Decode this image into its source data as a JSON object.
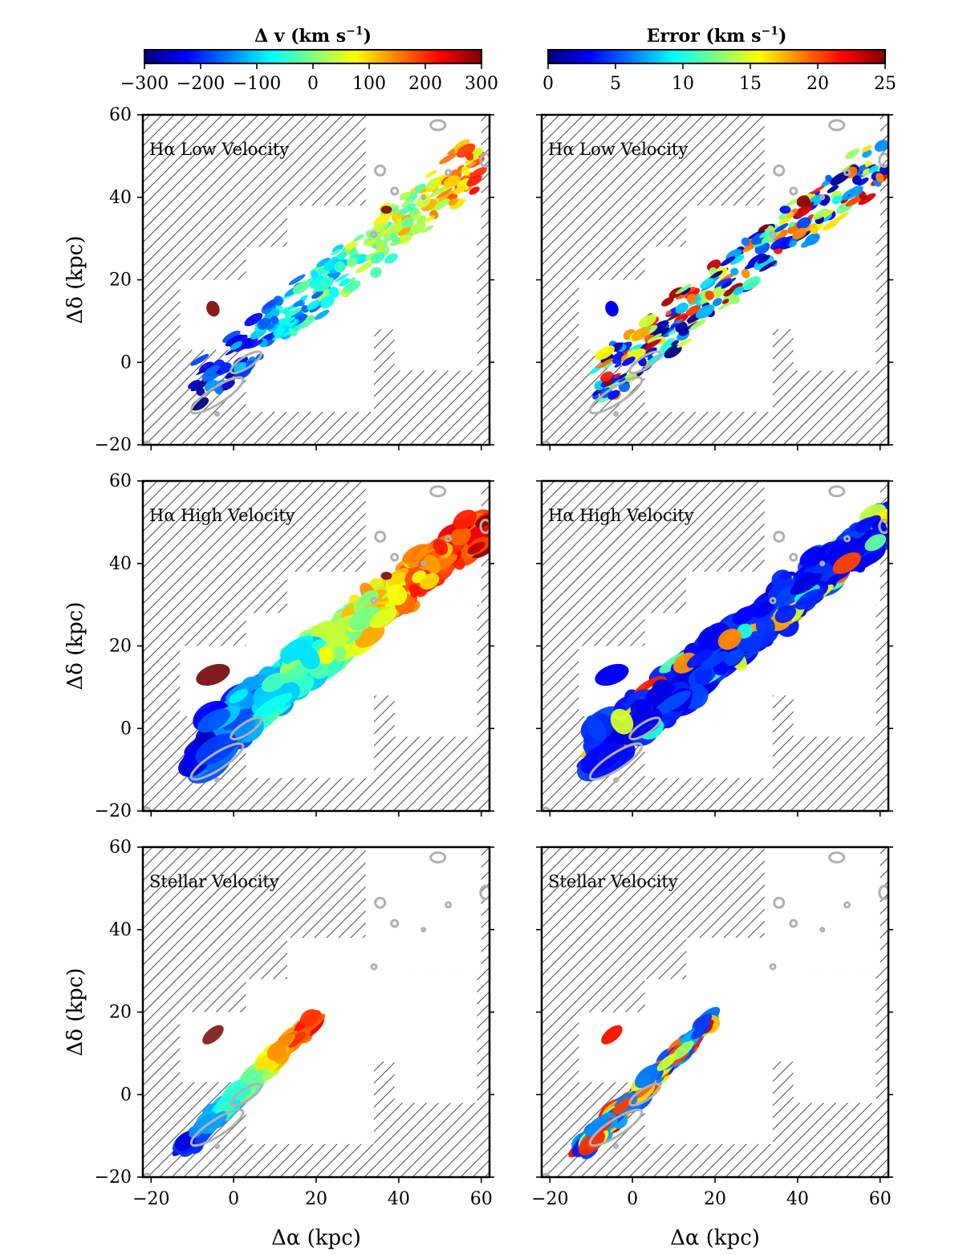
{
  "chart_data": [
    {
      "type": "colorbar",
      "title": "Δ v (km s⁻¹)",
      "title_bold": "Δ v",
      "title_units": " (km s",
      "title_sup": "−1",
      "title_end": ")",
      "range": [
        -300,
        300
      ],
      "ticks": [
        -300,
        -200,
        -100,
        0,
        100,
        200,
        300
      ],
      "tick_labels": [
        "−300",
        "−200",
        "−100",
        "0",
        "100",
        "200",
        "300"
      ],
      "colormap": "jet"
    },
    {
      "type": "colorbar",
      "title": "Error (km s⁻¹)",
      "title_bold": "Error",
      "title_units": " (km s",
      "title_sup": "−1",
      "title_end": ")",
      "range": [
        0,
        25
      ],
      "ticks": [
        0,
        5,
        10,
        15,
        20,
        25
      ],
      "tick_labels": [
        "0",
        "5",
        "10",
        "15",
        "20",
        "25"
      ],
      "colormap": "jet"
    }
  ],
  "panels": [
    {
      "label": "Hα Low Velocity",
      "kind": "velocity",
      "row": 0
    },
    {
      "label": "Hα Low Velocity",
      "kind": "error",
      "row": 0
    },
    {
      "label": "Hα High Velocity",
      "kind": "velocity",
      "row": 1
    },
    {
      "label": "Hα High Velocity",
      "kind": "error",
      "row": 1
    },
    {
      "label": "Stellar Velocity",
      "kind": "velocity",
      "row": 2
    },
    {
      "label": "Stellar Velocity",
      "kind": "error",
      "row": 2
    }
  ],
  "axes": {
    "xlabel": "Δα (kpc)",
    "ylabel": "Δδ (kpc)",
    "xlim": [
      -22,
      62
    ],
    "ylim": [
      -20,
      60
    ],
    "xticks": [
      -20,
      0,
      20,
      40,
      60
    ],
    "xtick_labels": [
      "−20",
      "0",
      "20",
      "40",
      "60"
    ],
    "yticks": [
      -20,
      0,
      20,
      40,
      60
    ],
    "ytick_labels": [
      "−20",
      "0",
      "20",
      "40",
      "60"
    ]
  },
  "colors": {
    "jet": [
      "#00007f",
      "#0000ff",
      "#007fff",
      "#00ffff",
      "#7fff7f",
      "#ffff00",
      "#ff7f00",
      "#ff0000",
      "#7f0000"
    ],
    "contour": "#b0b0b0",
    "hatch": "#555555",
    "frame": "#000000"
  }
}
